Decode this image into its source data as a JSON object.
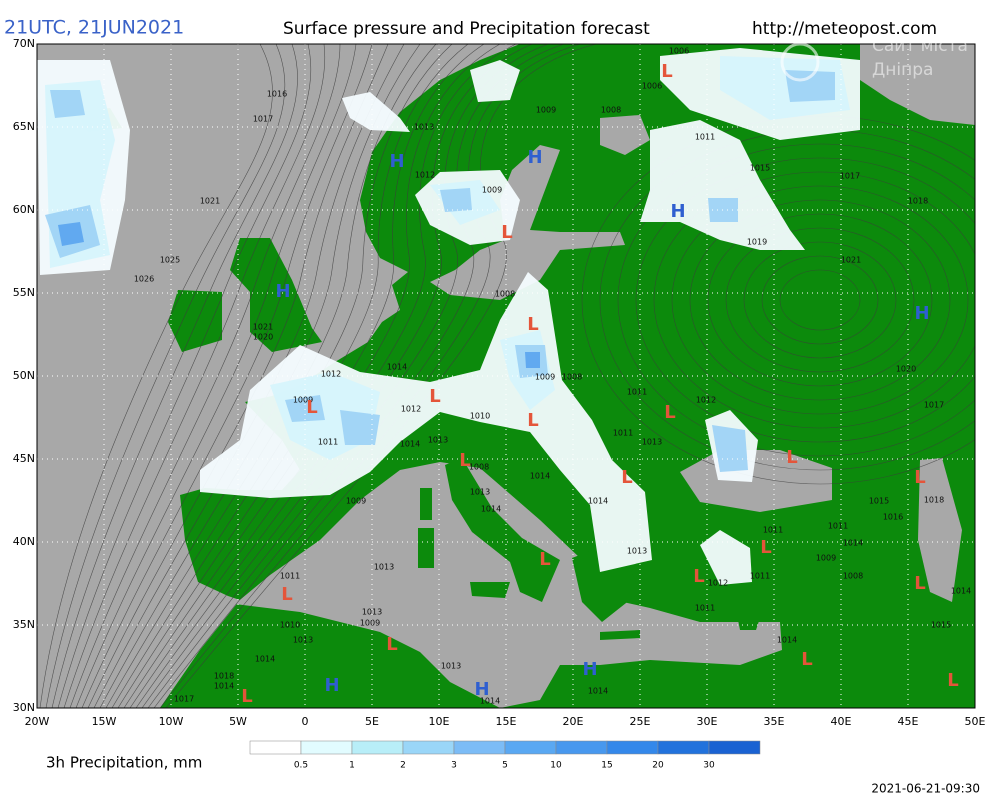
{
  "header": {
    "time": "21UTC, 21JUN2021",
    "title": "Surface pressure and Precipitation forecast",
    "url": "http://meteopost.com"
  },
  "map": {
    "lat_labels": [
      "70N",
      "65N",
      "60N",
      "55N",
      "50N",
      "45N",
      "40N",
      "35N",
      "30N"
    ],
    "lon_labels": [
      "20W",
      "15W",
      "10W",
      "5W",
      "0",
      "5E",
      "10E",
      "15E",
      "20E",
      "25E",
      "30E",
      "35E",
      "40E",
      "45E",
      "50E"
    ],
    "pressure_centers": [
      {
        "label": "H",
        "color": "#2f5fd0"
      },
      {
        "label": "H",
        "color": "#2f5fd0"
      },
      {
        "label": "H",
        "color": "#2f5fd0"
      },
      {
        "label": "H",
        "color": "#2f5fd0"
      },
      {
        "label": "H",
        "color": "#2f5fd0"
      },
      {
        "label": "H",
        "color": "#2f5fd0"
      },
      {
        "label": "H",
        "color": "#2f5fd0"
      },
      {
        "label": "H",
        "color": "#2f5fd0"
      },
      {
        "label": "L",
        "color": "#e4553a"
      },
      {
        "label": "L",
        "color": "#e4553a"
      },
      {
        "label": "L",
        "color": "#e4553a"
      },
      {
        "label": "L",
        "color": "#e4553a"
      },
      {
        "label": "L",
        "color": "#e4553a"
      },
      {
        "label": "L",
        "color": "#e4553a"
      },
      {
        "label": "L",
        "color": "#e4553a"
      },
      {
        "label": "L",
        "color": "#e4553a"
      },
      {
        "label": "L",
        "color": "#e4553a"
      },
      {
        "label": "L",
        "color": "#e4553a"
      },
      {
        "label": "L",
        "color": "#e4553a"
      },
      {
        "label": "L",
        "color": "#e4553a"
      },
      {
        "label": "L",
        "color": "#e4553a"
      },
      {
        "label": "L",
        "color": "#e4553a"
      },
      {
        "label": "L",
        "color": "#e4553a"
      },
      {
        "label": "L",
        "color": "#e4553a"
      },
      {
        "label": "L",
        "color": "#e4553a"
      },
      {
        "label": "L",
        "color": "#e4553a"
      },
      {
        "label": "L",
        "color": "#e4553a"
      },
      {
        "label": "L",
        "color": "#e4553a"
      }
    ],
    "isobar_labels": [
      "1016",
      "1017",
      "1021",
      "1025",
      "1026",
      "1013",
      "1012",
      "1009",
      "1009",
      "1008",
      "1006",
      "1006",
      "1011",
      "1015",
      "1017",
      "1018",
      "1019",
      "1021",
      "1008",
      "1021",
      "1020",
      "1014",
      "1012",
      "1009",
      "1012",
      "1011",
      "1014",
      "1013",
      "1010",
      "1009",
      "1008",
      "1011",
      "1012",
      "1011",
      "1013",
      "1008",
      "1013",
      "1014",
      "1009",
      "1014",
      "1013",
      "1011",
      "1013",
      "1013",
      "1009",
      "1010",
      "1013",
      "1014",
      "1018",
      "1014",
      "1017",
      "1013",
      "1014",
      "1014",
      "1012",
      "1011",
      "1011",
      "1014",
      "1011",
      "1009",
      "1008",
      "1014",
      "1011",
      "1015",
      "1016",
      "1020",
      "1017",
      "1018",
      "1014",
      "1015",
      "1014"
    ]
  },
  "legend": {
    "title": "3h Precipitation, mm",
    "levels": [
      0.5,
      1,
      2,
      3,
      5,
      10,
      15,
      20,
      30
    ]
  },
  "watermark": [
    "Сайт міста",
    "Дніпра"
  ],
  "timestamp": "2021-06-21-09:30"
}
